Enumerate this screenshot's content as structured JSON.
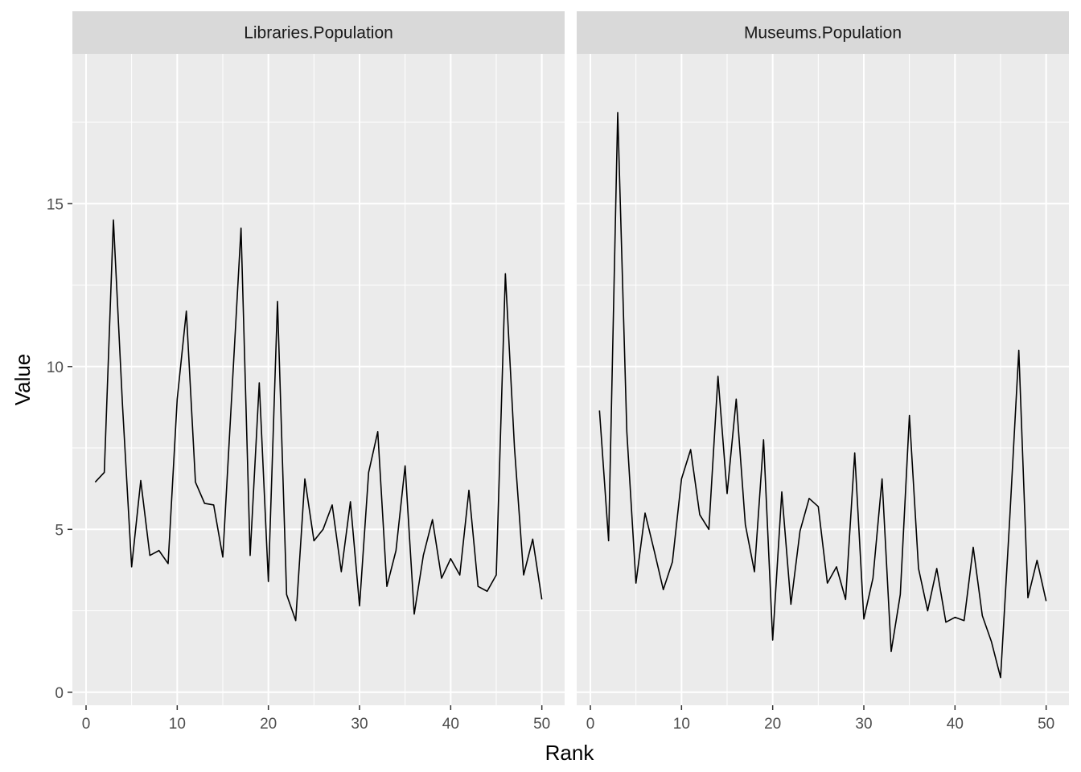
{
  "chart_data": {
    "type": "line",
    "xlabel": "Rank",
    "ylabel": "Value",
    "xlim": [
      -1.5,
      52.5
    ],
    "ylim": [
      -0.4,
      19.6
    ],
    "x_ticks": [
      0,
      10,
      20,
      30,
      40,
      50
    ],
    "y_ticks": [
      0,
      5,
      10,
      15
    ],
    "grid": true,
    "line_color": "#000000",
    "panel_background": "#ebebeb",
    "strip_background": "#d9d9d9",
    "panels": [
      {
        "name": "Libraries.Population",
        "x": [
          1,
          2,
          3,
          4,
          5,
          6,
          7,
          8,
          9,
          10,
          11,
          12,
          13,
          14,
          15,
          16,
          17,
          18,
          19,
          20,
          21,
          22,
          23,
          24,
          25,
          26,
          27,
          28,
          29,
          30,
          31,
          32,
          33,
          34,
          35,
          36,
          37,
          38,
          39,
          40,
          41,
          42,
          43,
          44,
          45,
          46,
          47,
          48,
          49,
          50
        ],
        "values": [
          6.45,
          6.75,
          14.5,
          8.8,
          3.85,
          6.5,
          4.2,
          4.35,
          3.95,
          9.0,
          11.7,
          6.45,
          5.8,
          5.75,
          4.15,
          9.2,
          14.25,
          4.2,
          9.5,
          3.4,
          12.0,
          3.0,
          2.2,
          6.55,
          4.65,
          5.0,
          5.75,
          3.7,
          5.85,
          2.65,
          6.75,
          8.0,
          3.25,
          4.35,
          6.95,
          2.4,
          4.2,
          5.3,
          3.5,
          4.1,
          3.6,
          6.2,
          3.25,
          3.1,
          3.6,
          12.85,
          7.5,
          3.6,
          4.7,
          2.85
        ]
      },
      {
        "name": "Museums.Population",
        "x": [
          1,
          2,
          3,
          4,
          5,
          6,
          7,
          8,
          9,
          10,
          11,
          12,
          13,
          14,
          15,
          16,
          17,
          18,
          19,
          20,
          21,
          22,
          23,
          24,
          25,
          26,
          27,
          28,
          29,
          30,
          31,
          32,
          33,
          34,
          35,
          36,
          37,
          38,
          39,
          40,
          41,
          42,
          43,
          44,
          45,
          46,
          47,
          48,
          49,
          50
        ],
        "values": [
          8.65,
          4.65,
          17.8,
          8.0,
          3.35,
          5.5,
          4.35,
          3.15,
          4.0,
          6.55,
          7.45,
          5.45,
          5.0,
          9.7,
          6.1,
          9.0,
          5.15,
          3.7,
          7.75,
          1.6,
          6.15,
          2.7,
          4.95,
          5.95,
          5.7,
          3.35,
          3.85,
          2.85,
          7.35,
          2.25,
          3.5,
          6.55,
          1.25,
          3.0,
          8.5,
          3.8,
          2.5,
          3.8,
          2.15,
          2.3,
          2.2,
          4.45,
          2.35,
          1.55,
          0.45,
          5.3,
          10.5,
          2.9,
          4.05,
          2.8
        ]
      }
    ]
  }
}
